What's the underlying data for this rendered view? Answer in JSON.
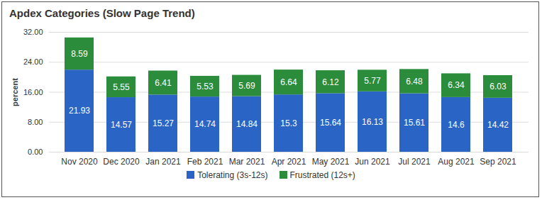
{
  "chart_data": {
    "type": "bar",
    "title": "Apdex Categories (Slow Page Trend)",
    "y_label": "percent",
    "categories": [
      "Nov 2020",
      "Dec 2020",
      "Jan 2021",
      "Feb 2021",
      "Mar 2021",
      "Apr 2021",
      "May 2021",
      "Jun 2021",
      "Jul 2021",
      "Aug 2021",
      "Sep 2021"
    ],
    "series": [
      {
        "name": "Tolerating (3s-12s)",
        "color": "#2a64c5",
        "values": [
          21.93,
          14.57,
          15.27,
          14.74,
          14.84,
          15.3,
          15.64,
          16.13,
          15.61,
          14.6,
          14.42
        ]
      },
      {
        "name": "Frustrated (12s+)",
        "color": "#2b8c3c",
        "values": [
          8.59,
          5.55,
          6.41,
          5.53,
          5.69,
          6.64,
          6.12,
          5.77,
          6.48,
          6.34,
          6.03
        ]
      }
    ],
    "ylim": [
      0,
      32
    ],
    "yticks": [
      {
        "value": 0,
        "label": "0.00"
      },
      {
        "value": 8,
        "label": "8.00"
      },
      {
        "value": 16,
        "label": "16.00"
      },
      {
        "value": 24,
        "label": "24.00"
      },
      {
        "value": 32,
        "label": "32.00"
      }
    ],
    "stacked": true,
    "data_labels": true,
    "grid": true,
    "legend": "bottom"
  }
}
